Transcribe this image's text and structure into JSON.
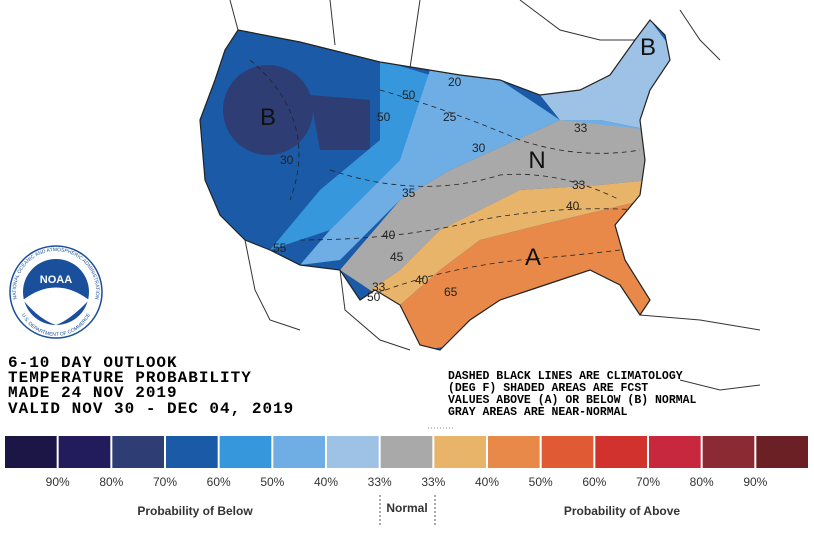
{
  "header": {
    "title_lines": [
      "6-10 DAY OUTLOOK",
      "TEMPERATURE PROBABILITY",
      "MADE  24 NOV 2019",
      "VALID  NOV 30 - DEC 04, 2019"
    ]
  },
  "notes": [
    "DASHED BLACK LINES ARE CLIMATOLOGY",
    "(DEG F) SHADED AREAS ARE FCST",
    "VALUES ABOVE (A) OR BELOW (B) NORMAL",
    "GRAY AREAS ARE NEAR-NORMAL"
  ],
  "logo": {
    "text": "NOAA",
    "ring_top": "NATIONAL OCEANIC AND ATMOSPHERIC ADMINISTRATION",
    "ring_bottom": "U.S. DEPARTMENT OF COMMERCE"
  },
  "map_labels": {
    "regions": [
      "B",
      "B",
      "N",
      "A"
    ],
    "contours": [
      "50",
      "20",
      "50",
      "25",
      "30",
      "30",
      "35",
      "40",
      "45",
      "40",
      "55",
      "33",
      "50",
      "65",
      "33",
      "33",
      "40"
    ]
  },
  "legend": {
    "colors": [
      "#1b1646",
      "#231c5c",
      "#2e3d73",
      "#1a5aa6",
      "#3797dc",
      "#6eaee4",
      "#9ec2e6",
      "#a9a9a9",
      "#e8b46a",
      "#e8894a",
      "#e05a34",
      "#d1322e",
      "#c8283e",
      "#8c2a34",
      "#6a2024"
    ],
    "labels": [
      "90%",
      "80%",
      "70%",
      "60%",
      "50%",
      "40%",
      "33%",
      "33%",
      "40%",
      "50%",
      "60%",
      "70%",
      "80%",
      "90%"
    ],
    "below": "Probability of Below",
    "normal": "Normal",
    "above": "Probability of Above"
  }
}
